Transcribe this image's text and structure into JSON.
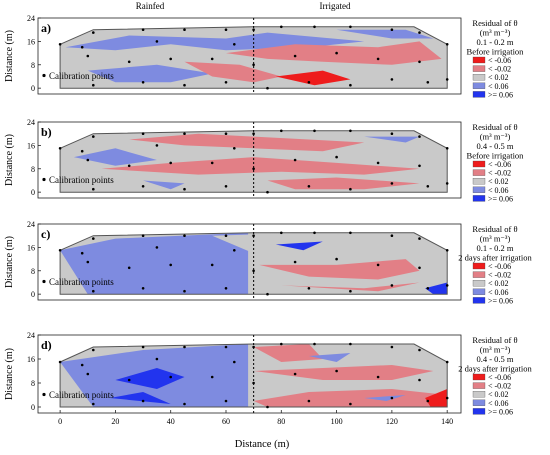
{
  "figure": {
    "top_labels": {
      "left": "Rainfed",
      "right": "Irrigated"
    },
    "ylabel": "Distance (m)",
    "xlabel": "Distance (m)",
    "x_ticks": [
      "0",
      "20",
      "40",
      "60",
      "80",
      "100",
      "120",
      "140"
    ],
    "y_ticks": [
      "0",
      "8",
      "16",
      "24"
    ],
    "divider_x": 70,
    "calibration_label": "Calibration points"
  },
  "chart_data": [
    {
      "type": "heatmap",
      "panel": "a)",
      "xlim": [
        -8,
        145
      ],
      "ylim": [
        -2,
        24
      ],
      "y_ticks": [
        0,
        8,
        16,
        24
      ],
      "legend": {
        "title": [
          "Residual of θ",
          "(m³ m⁻³)",
          "0.1 - 0.2 m",
          "Before irrigation"
        ],
        "entries": [
          "< -0.06",
          "< -0.02",
          "< 0.02",
          "< 0.06",
          ">= 0.06"
        ]
      },
      "calibration_points": [
        [
          0,
          15
        ],
        [
          12,
          19
        ],
        [
          30,
          20
        ],
        [
          45,
          20
        ],
        [
          60,
          20
        ],
        [
          70,
          20
        ],
        [
          80,
          21
        ],
        [
          92,
          21
        ],
        [
          105,
          21
        ],
        [
          120,
          20
        ],
        [
          130,
          19
        ],
        [
          140,
          15
        ],
        [
          10,
          11
        ],
        [
          25,
          9
        ],
        [
          40,
          10
        ],
        [
          55,
          10
        ],
        [
          70,
          8
        ],
        [
          85,
          11
        ],
        [
          100,
          12
        ],
        [
          115,
          10
        ],
        [
          130,
          9
        ],
        [
          140,
          3
        ],
        [
          12,
          1
        ],
        [
          30,
          2
        ],
        [
          45,
          1
        ],
        [
          60,
          2
        ],
        [
          75,
          0
        ],
        [
          90,
          2
        ],
        [
          105,
          1
        ],
        [
          120,
          3
        ],
        [
          133,
          2
        ],
        [
          8,
          14
        ],
        [
          35,
          16
        ],
        [
          63,
          15
        ]
      ]
    },
    {
      "type": "heatmap",
      "panel": "b)",
      "xlim": [
        -8,
        145
      ],
      "ylim": [
        -2,
        24
      ],
      "y_ticks": [
        0,
        8,
        16,
        24
      ],
      "legend": {
        "title": [
          "Residual of θ",
          "(m³ m⁻³)",
          "0.4 - 0.5 m",
          "Before irrigation"
        ],
        "entries": [
          "< -0.06",
          "< -0.02",
          "< 0.02",
          "< 0.06",
          ">= 0.06"
        ]
      },
      "calibration_points": [
        [
          0,
          15
        ],
        [
          12,
          19
        ],
        [
          30,
          20
        ],
        [
          45,
          20
        ],
        [
          60,
          20
        ],
        [
          70,
          20
        ],
        [
          80,
          21
        ],
        [
          92,
          21
        ],
        [
          105,
          21
        ],
        [
          120,
          20
        ],
        [
          130,
          19
        ],
        [
          140,
          15
        ],
        [
          10,
          11
        ],
        [
          25,
          9
        ],
        [
          40,
          10
        ],
        [
          55,
          10
        ],
        [
          70,
          8
        ],
        [
          85,
          11
        ],
        [
          100,
          12
        ],
        [
          115,
          10
        ],
        [
          130,
          9
        ],
        [
          140,
          3
        ],
        [
          12,
          1
        ],
        [
          30,
          2
        ],
        [
          45,
          1
        ],
        [
          60,
          2
        ],
        [
          75,
          0
        ],
        [
          90,
          2
        ],
        [
          105,
          1
        ],
        [
          120,
          3
        ],
        [
          133,
          2
        ],
        [
          8,
          14
        ],
        [
          35,
          16
        ],
        [
          63,
          15
        ]
      ]
    },
    {
      "type": "heatmap",
      "panel": "c)",
      "xlim": [
        -8,
        145
      ],
      "ylim": [
        -2,
        24
      ],
      "y_ticks": [
        0,
        8,
        16,
        24
      ],
      "legend": {
        "title": [
          "Residual of θ",
          "(m³ m⁻³)",
          "0.1 - 0.2 m",
          "2 days after irrigation"
        ],
        "entries": [
          "< -0.06",
          "< -0.02",
          "< 0.02",
          "< 0.06",
          ">= 0.06"
        ]
      },
      "calibration_points": [
        [
          0,
          15
        ],
        [
          12,
          19
        ],
        [
          30,
          20
        ],
        [
          45,
          20
        ],
        [
          60,
          20
        ],
        [
          70,
          20
        ],
        [
          80,
          21
        ],
        [
          92,
          21
        ],
        [
          105,
          21
        ],
        [
          120,
          20
        ],
        [
          130,
          19
        ],
        [
          140,
          15
        ],
        [
          10,
          11
        ],
        [
          25,
          9
        ],
        [
          40,
          10
        ],
        [
          55,
          10
        ],
        [
          70,
          8
        ],
        [
          85,
          11
        ],
        [
          100,
          12
        ],
        [
          115,
          10
        ],
        [
          130,
          9
        ],
        [
          140,
          3
        ],
        [
          12,
          1
        ],
        [
          30,
          2
        ],
        [
          45,
          1
        ],
        [
          60,
          2
        ],
        [
          75,
          0
        ],
        [
          90,
          2
        ],
        [
          105,
          1
        ],
        [
          120,
          3
        ],
        [
          133,
          2
        ],
        [
          8,
          14
        ],
        [
          35,
          16
        ],
        [
          63,
          15
        ]
      ]
    },
    {
      "type": "heatmap",
      "panel": "d)",
      "xlim": [
        -8,
        145
      ],
      "ylim": [
        -2,
        24
      ],
      "y_ticks": [
        0,
        8,
        16,
        24
      ],
      "legend": {
        "title": [
          "Residual of θ",
          "(m³ m⁻³)",
          "0.4 - 0.5 m",
          "2 days after irrigation"
        ],
        "entries": [
          "< -0.06",
          "< -0.02",
          "< 0.02",
          "< 0.06",
          ">= 0.06"
        ]
      },
      "calibration_points": [
        [
          0,
          15
        ],
        [
          12,
          19
        ],
        [
          30,
          20
        ],
        [
          45,
          20
        ],
        [
          60,
          20
        ],
        [
          70,
          20
        ],
        [
          80,
          21
        ],
        [
          92,
          21
        ],
        [
          105,
          21
        ],
        [
          120,
          20
        ],
        [
          130,
          19
        ],
        [
          140,
          15
        ],
        [
          10,
          11
        ],
        [
          25,
          9
        ],
        [
          40,
          10
        ],
        [
          55,
          10
        ],
        [
          70,
          8
        ],
        [
          85,
          11
        ],
        [
          100,
          12
        ],
        [
          115,
          10
        ],
        [
          130,
          9
        ],
        [
          140,
          3
        ],
        [
          12,
          1
        ],
        [
          30,
          2
        ],
        [
          45,
          1
        ],
        [
          60,
          2
        ],
        [
          75,
          0
        ],
        [
          90,
          2
        ],
        [
          105,
          1
        ],
        [
          120,
          3
        ],
        [
          133,
          2
        ],
        [
          8,
          14
        ],
        [
          35,
          16
        ],
        [
          63,
          15
        ]
      ]
    }
  ],
  "legend_colors": [
    "#ee1c1c",
    "#e27f86",
    "#c9c9c9",
    "#7e8be0",
    "#2234ee"
  ]
}
